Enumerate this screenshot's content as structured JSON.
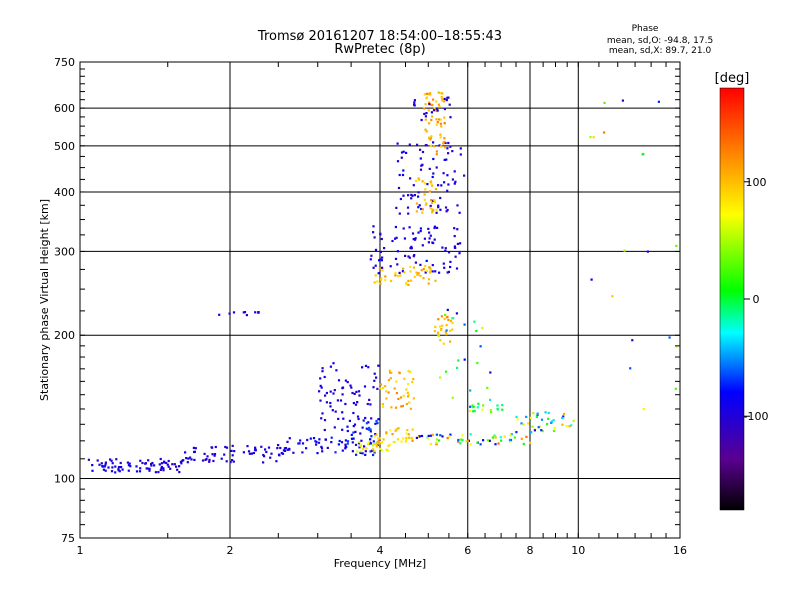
{
  "title_line1": "Tromsø 20161207 18:54:00–18:55:43",
  "title_line2": "RwPretec (8p)",
  "phase_info": {
    "header": "Phase",
    "line_o": "mean, sd,O: -94.8, 17.5",
    "line_x": "mean, sd,X:  89.7, 21.0"
  },
  "colorbar": {
    "label": "[deg]",
    "ticks": [
      {
        "value": 100,
        "label": "100"
      },
      {
        "value": 0,
        "label": "0"
      },
      {
        "value": -100,
        "label": "-100"
      }
    ],
    "range": [
      -180,
      180
    ]
  },
  "chart_data": {
    "type": "scatter",
    "xlabel": "Frequency [MHz]",
    "ylabel": "Stationary phase Virtual Height [km]",
    "xscale": "log",
    "yscale": "log",
    "xlim": [
      1,
      16
    ],
    "ylim": [
      75,
      750
    ],
    "grid": true,
    "x_ticks": [
      {
        "value": 1,
        "label": "1"
      },
      {
        "value": 2,
        "label": "2"
      },
      {
        "value": 4,
        "label": "4"
      },
      {
        "value": 6,
        "label": "6"
      },
      {
        "value": 8,
        "label": "8"
      },
      {
        "value": 10,
        "label": "10"
      },
      {
        "value": 16,
        "label": "16"
      }
    ],
    "y_ticks": [
      {
        "value": 75,
        "label": "75"
      },
      {
        "value": 100,
        "label": "100"
      },
      {
        "value": 200,
        "label": "200"
      },
      {
        "value": 300,
        "label": "300"
      },
      {
        "value": 400,
        "label": "400"
      },
      {
        "value": 500,
        "label": "500"
      },
      {
        "value": 600,
        "label": "600"
      },
      {
        "value": 750,
        "label": "750"
      }
    ],
    "x_gridlines": [
      2,
      4,
      6,
      8,
      10
    ],
    "y_gridlines": [
      100,
      200,
      300,
      400,
      500,
      600
    ],
    "clusters": [
      {
        "x": [
          1.0,
          1.6
        ],
        "y": [
          103,
          110
        ],
        "phase": [
          -110,
          -85
        ],
        "n": 80
      },
      {
        "x": [
          1.6,
          2.6
        ],
        "y": [
          108,
          118
        ],
        "phase": [
          -110,
          -85
        ],
        "n": 70
      },
      {
        "x": [
          2.6,
          4.0
        ],
        "y": [
          112,
          122
        ],
        "phase": [
          -110,
          -70
        ],
        "n": 60
      },
      {
        "x": [
          3.3,
          4.0
        ],
        "y": [
          118,
          135
        ],
        "phase": [
          -100,
          -60
        ],
        "n": 30
      },
      {
        "x": [
          3.6,
          4.2
        ],
        "y": [
          114,
          120
        ],
        "phase": [
          60,
          110
        ],
        "n": 25
      },
      {
        "x": [
          3.0,
          4.0
        ],
        "y": [
          125,
          175
        ],
        "phase": [
          -110,
          -85
        ],
        "n": 70
      },
      {
        "x": [
          3.9,
          4.7
        ],
        "y": [
          117,
          128
        ],
        "phase": [
          70,
          120
        ],
        "n": 35
      },
      {
        "x": [
          4.0,
          4.7
        ],
        "y": [
          140,
          170
        ],
        "phase": [
          80,
          125
        ],
        "n": 40
      },
      {
        "x": [
          4.7,
          8.0
        ],
        "y": [
          118,
          124
        ],
        "phase": [
          -110,
          140
        ],
        "n": 60
      },
      {
        "x": [
          7.5,
          9.8
        ],
        "y": [
          125,
          138
        ],
        "phase": [
          -110,
          110
        ],
        "n": 40
      },
      {
        "x": [
          6.0,
          7.2
        ],
        "y": [
          138,
          143
        ],
        "phase": [
          -20,
          100
        ],
        "n": 15
      },
      {
        "x": [
          3.8,
          5.8
        ],
        "y": [
          270,
          340
        ],
        "phase": [
          -110,
          -80
        ],
        "n": 90
      },
      {
        "x": [
          3.9,
          5.2
        ],
        "y": [
          255,
          280
        ],
        "phase": [
          80,
          120
        ],
        "n": 45
      },
      {
        "x": [
          4.3,
          5.9
        ],
        "y": [
          360,
          510
        ],
        "phase": [
          -110,
          -85
        ],
        "n": 80
      },
      {
        "x": [
          4.7,
          5.2
        ],
        "y": [
          360,
          430
        ],
        "phase": [
          80,
          120
        ],
        "n": 30
      },
      {
        "x": [
          4.9,
          5.4
        ],
        "y": [
          480,
          650
        ],
        "phase": [
          85,
          125
        ],
        "n": 60
      },
      {
        "x": [
          4.6,
          5.6
        ],
        "y": [
          560,
          640
        ],
        "phase": [
          -110,
          -85
        ],
        "n": 20
      },
      {
        "x": [
          5.1,
          5.6
        ],
        "y": [
          190,
          220
        ],
        "phase": [
          85,
          125
        ],
        "n": 25
      },
      {
        "x": [
          5.2,
          6.8
        ],
        "y": [
          140,
          230
        ],
        "phase": [
          -110,
          60
        ],
        "n": 25
      },
      {
        "x": [
          1.9,
          2.3
        ],
        "y": [
          220,
          224
        ],
        "phase": [
          -110,
          -90
        ],
        "n": 10
      },
      {
        "x": [
          10.0,
          16.0
        ],
        "y": [
          130,
          650
        ],
        "phase": [
          -110,
          130
        ],
        "n": 20
      }
    ]
  }
}
